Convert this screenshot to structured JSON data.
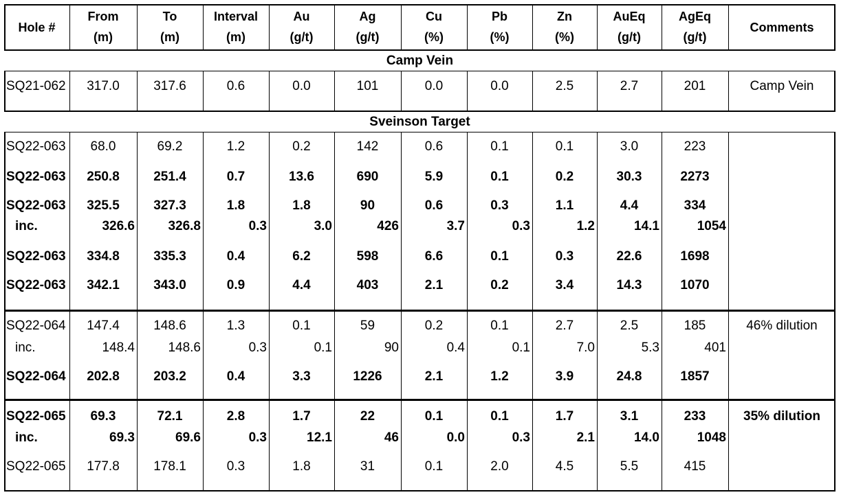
{
  "headers": [
    [
      "Hole #"
    ],
    [
      "From",
      "(m)"
    ],
    [
      "To",
      "(m)"
    ],
    [
      "Interval",
      "(m)"
    ],
    [
      "Au",
      "(g/t)"
    ],
    [
      "Ag",
      "(g/t)"
    ],
    [
      "Cu",
      "(%)"
    ],
    [
      "Pb",
      "(%)"
    ],
    [
      "Zn",
      "(%)"
    ],
    [
      "AuEq",
      "(g/t)"
    ],
    [
      "AgEq",
      "(g/t)"
    ],
    [
      "Comments"
    ]
  ],
  "sections": {
    "camp": "Camp Vein",
    "sveinson": "Sveinson Target"
  },
  "rows": [
    {
      "cells": [
        "SQ21-062",
        "317.0",
        "317.6",
        "0.6",
        "0.0",
        "101",
        "0.0",
        "0.0",
        "2.5",
        "2.7",
        "201",
        "Camp Vein"
      ],
      "bold": false,
      "align": "center",
      "y": 126
    },
    {
      "cells": [
        "SQ22-063",
        "68.0",
        "69.2",
        "1.2",
        "0.2",
        "142",
        "0.6",
        "0.1",
        "0.1",
        "3.0",
        "223",
        ""
      ],
      "bold": false,
      "align": "center",
      "y": 214
    },
    {
      "cells": [
        "SQ22-063",
        "250.8",
        "251.4",
        "0.7",
        "13.6",
        "690",
        "5.9",
        "0.1",
        "0.2",
        "30.3",
        "2273",
        ""
      ],
      "bold": true,
      "align": "center",
      "y": 258
    },
    {
      "cells": [
        "SQ22-063",
        "325.5",
        "327.3",
        "1.8",
        "1.8",
        "90",
        "0.6",
        "0.3",
        "1.1",
        "4.4",
        "334",
        ""
      ],
      "bold": true,
      "align": "center",
      "y": 300
    },
    {
      "cells": [
        "inc.",
        "326.6",
        "326.8",
        "0.3",
        "3.0",
        "426",
        "3.7",
        "0.3",
        "1.2",
        "14.1",
        "1054",
        ""
      ],
      "bold": true,
      "align": "right",
      "y": 330
    },
    {
      "cells": [
        "SQ22-063",
        "334.8",
        "335.3",
        "0.4",
        "6.2",
        "598",
        "6.6",
        "0.1",
        "0.3",
        "22.6",
        "1698",
        ""
      ],
      "bold": true,
      "align": "center",
      "y": 374
    },
    {
      "cells": [
        "SQ22-063",
        "342.1",
        "343.0",
        "0.9",
        "4.4",
        "403",
        "2.1",
        "0.2",
        "3.4",
        "14.3",
        "1070",
        ""
      ],
      "bold": true,
      "align": "center",
      "y": 416
    },
    {
      "cells": [
        "SQ22-064",
        "147.4",
        "148.6",
        "1.3",
        "0.1",
        "59",
        "0.2",
        "0.1",
        "2.7",
        "2.5",
        "185",
        "46% dilution"
      ],
      "bold": false,
      "align": "center",
      "y": 475
    },
    {
      "cells": [
        "inc.",
        "148.4",
        "148.6",
        "0.3",
        "0.1",
        "90",
        "0.4",
        "0.1",
        "7.0",
        "5.3",
        "401",
        ""
      ],
      "bold": false,
      "align": "right",
      "y": 507
    },
    {
      "cells": [
        "SQ22-064",
        "202.8",
        "203.2",
        "0.4",
        "3.3",
        "1226",
        "2.1",
        "1.2",
        "3.9",
        "24.8",
        "1857",
        ""
      ],
      "bold": true,
      "align": "center",
      "y": 549
    },
    {
      "cells": [
        "SQ22-065",
        "69.3",
        "72.1",
        "2.8",
        "1.7",
        "22",
        "0.1",
        "0.1",
        "1.7",
        "3.1",
        "233",
        "35% dilution"
      ],
      "bold": true,
      "align": "center",
      "y": 607
    },
    {
      "cells": [
        "inc.",
        "69.3",
        "69.6",
        "0.3",
        "12.1",
        "46",
        "0.0",
        "0.3",
        "2.1",
        "14.0",
        "1048",
        ""
      ],
      "bold": true,
      "align": "right",
      "y": 638
    },
    {
      "cells": [
        "SQ22-065",
        "177.8",
        "178.1",
        "0.3",
        "1.8",
        "31",
        "0.1",
        "2.0",
        "4.5",
        "5.5",
        "415",
        ""
      ],
      "bold": false,
      "align": "center",
      "y": 680
    }
  ]
}
